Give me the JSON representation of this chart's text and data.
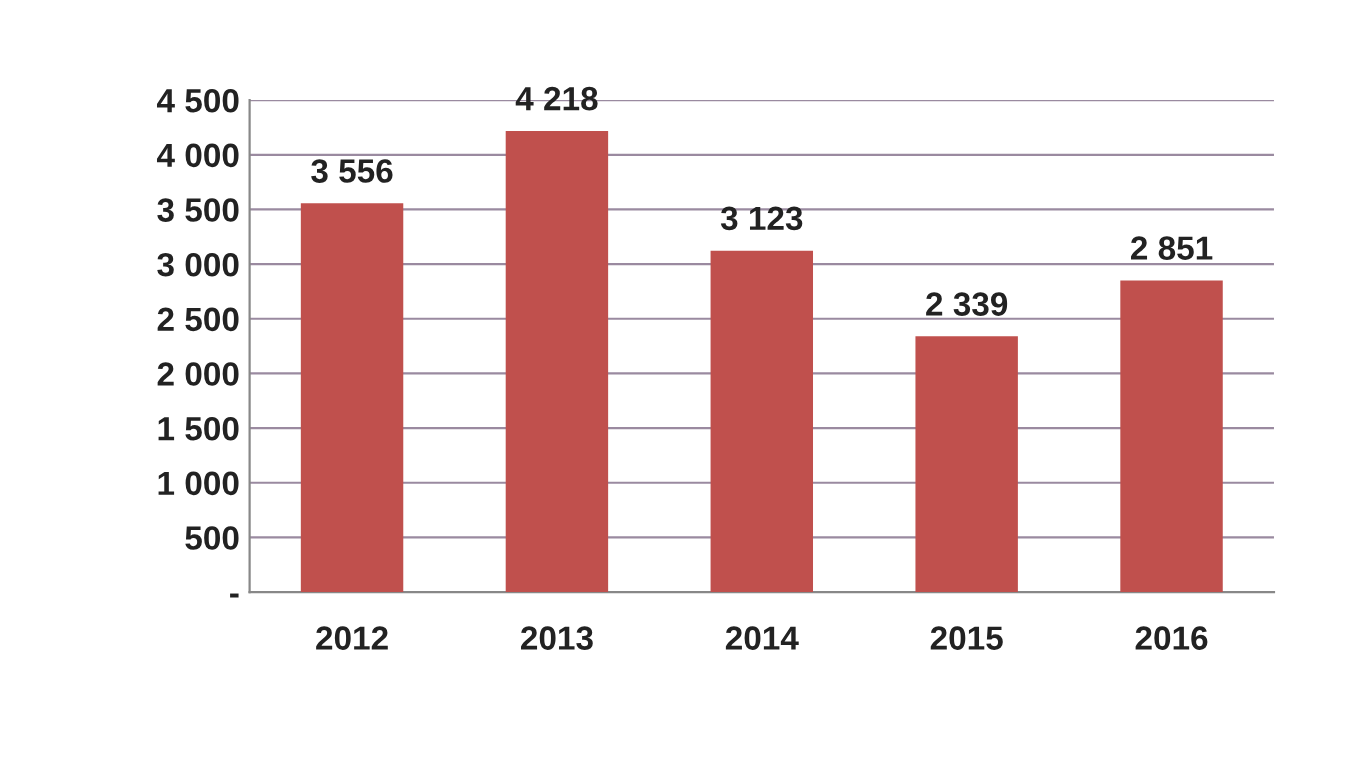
{
  "chart_data": {
    "type": "bar",
    "categories": [
      "2012",
      "2013",
      "2014",
      "2015",
      "2016"
    ],
    "values": [
      3556,
      4218,
      3123,
      2339,
      2851
    ],
    "value_labels": [
      "3 556",
      "4 218",
      "3 123",
      "2 339",
      "2 851"
    ],
    "color": "#c0504d",
    "ylim": [
      0,
      4500
    ],
    "yticks": [
      {
        "value": 0,
        "label": "-"
      },
      500,
      {
        "value": 1000,
        "label": "1 000"
      },
      {
        "value": 1500,
        "label": "1 500"
      },
      {
        "value": 2000,
        "label": "2 000"
      },
      {
        "value": 2500,
        "label": "2 500"
      },
      {
        "value": 3000,
        "label": "3 000"
      },
      {
        "value": 3500,
        "label": "3 500"
      },
      {
        "value": 4000,
        "label": "4 000"
      },
      {
        "value": 4500,
        "label": "4 500"
      }
    ],
    "grid": "y",
    "legend": false
  }
}
